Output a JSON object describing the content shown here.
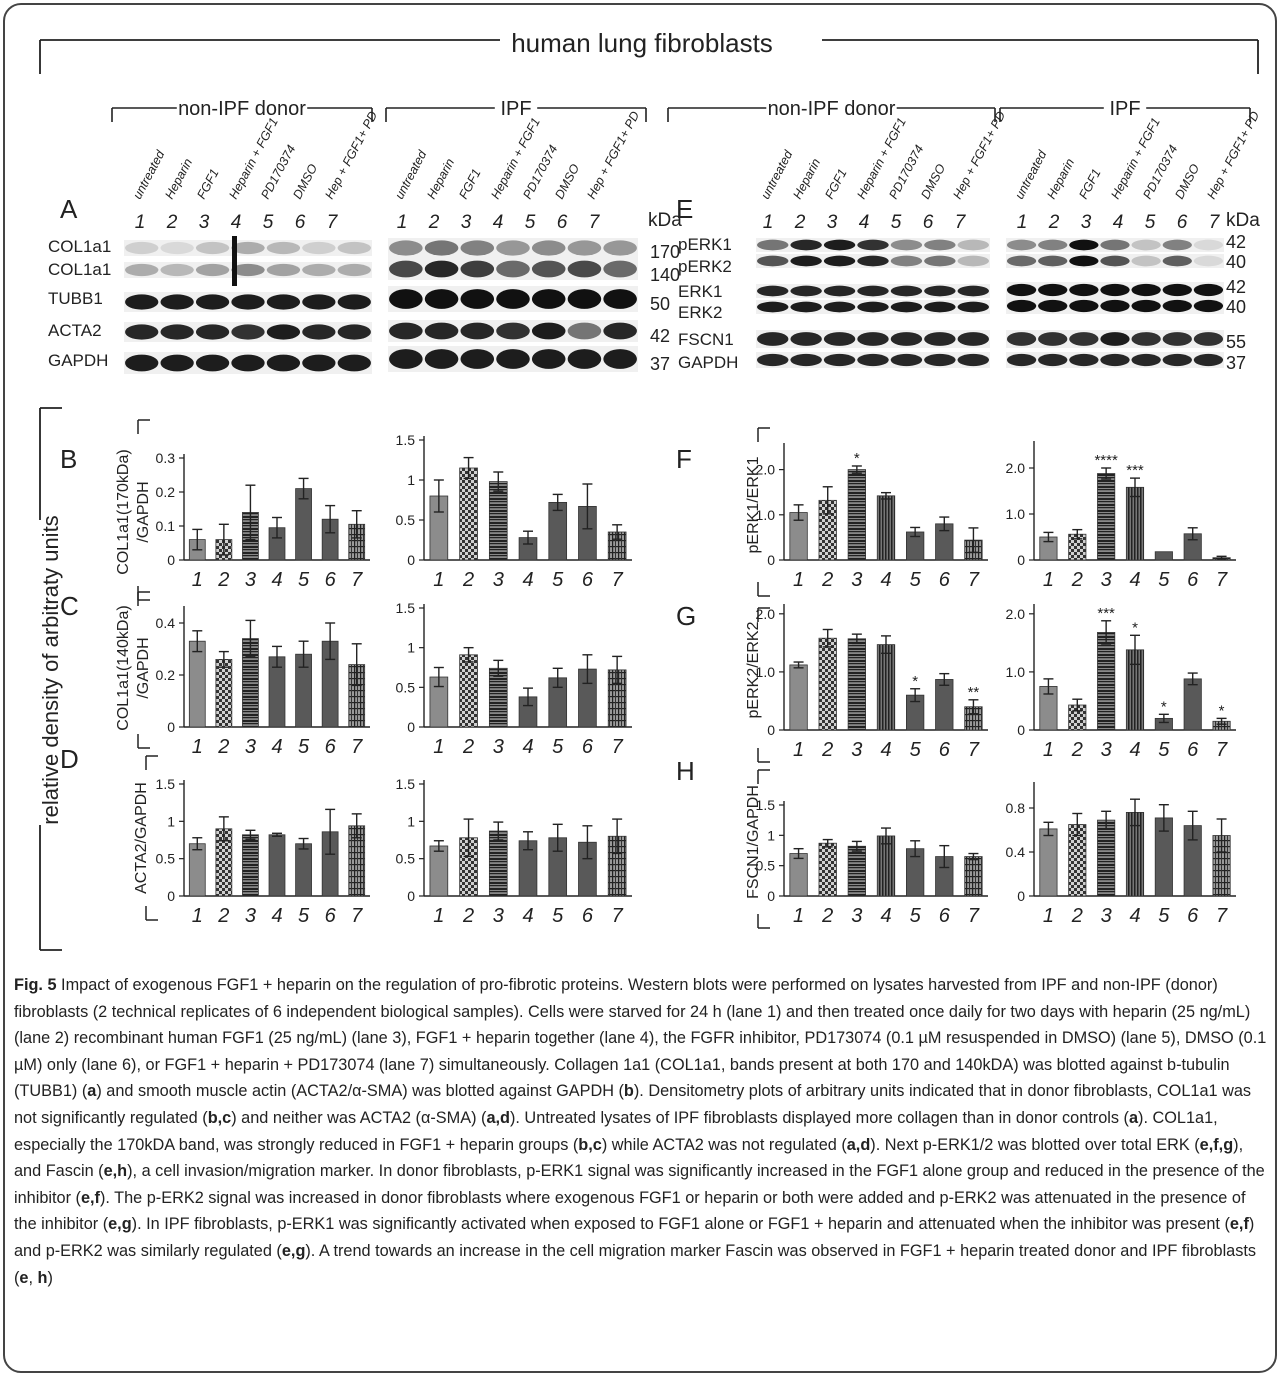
{
  "figure": {
    "title": "human lung fibroblasts",
    "ylabel_global": "relative density of arbitraty units",
    "group_labels": [
      "non-IPF donor",
      "IPF",
      "non-IPF donor",
      "IPF"
    ],
    "lane_names": [
      "untreated",
      "Heparin",
      "FGF1",
      "Heparin + FGF1",
      "PD170374",
      "DMSO",
      "Hep + FGF1+ PD"
    ],
    "lane_numbers": [
      "1",
      "2",
      "3",
      "4",
      "5",
      "6",
      "7"
    ],
    "kda_label": "kDa",
    "blot_left": {
      "panel_letter": "A",
      "rows": [
        "COL1a1",
        "COL1a1",
        "TUBB1",
        "ACTA2",
        "GAPDH"
      ],
      "kda": [
        "170",
        "140",
        "50",
        "42",
        "37"
      ]
    },
    "blot_right": {
      "panel_letter": "E",
      "rows": [
        "pERK1",
        "pERK2",
        "ERK1",
        "ERK2",
        "FSCN1",
        "GAPDH"
      ],
      "kda": [
        "42",
        "40",
        "42",
        "40",
        "55",
        "37"
      ]
    }
  },
  "chart_data": [
    {
      "id": "B-donor",
      "panel": "B",
      "type": "bar",
      "ylabel": "COL1a1(170kDa)\n/GAPDH",
      "categories": [
        "1",
        "2",
        "3",
        "4",
        "5",
        "6",
        "7"
      ],
      "values": [
        0.06,
        0.06,
        0.14,
        0.095,
        0.21,
        0.12,
        0.105
      ],
      "errors": [
        0.03,
        0.045,
        0.08,
        0.03,
        0.03,
        0.04,
        0.04
      ],
      "ylim": [
        0,
        0.3
      ],
      "ticks": [
        "0",
        "0.1",
        "0.2",
        "0.3"
      ],
      "tick_values": [
        0,
        0.1,
        0.2,
        0.3
      ],
      "stars": [
        "",
        "",
        "",
        "",
        "",
        "",
        ""
      ]
    },
    {
      "id": "B-ipf",
      "panel": "B",
      "type": "bar",
      "ylabel": "",
      "categories": [
        "1",
        "2",
        "3",
        "4",
        "5",
        "6",
        "7"
      ],
      "values": [
        0.8,
        1.15,
        0.98,
        0.28,
        0.72,
        0.67,
        0.35
      ],
      "errors": [
        0.2,
        0.13,
        0.12,
        0.08,
        0.1,
        0.28,
        0.09
      ],
      "ylim": [
        0,
        1.5
      ],
      "ticks": [
        "0",
        "0.5",
        "1",
        "1.5"
      ],
      "tick_values": [
        0,
        0.5,
        1,
        1.5
      ],
      "stars": [
        "",
        "",
        "",
        "",
        "",
        "",
        ""
      ]
    },
    {
      "id": "C-donor",
      "panel": "C",
      "type": "bar",
      "ylabel": "COL1a1(140kDa)\n/GAPDH",
      "categories": [
        "1",
        "2",
        "3",
        "4",
        "5",
        "6",
        "7"
      ],
      "values": [
        0.33,
        0.26,
        0.34,
        0.27,
        0.28,
        0.33,
        0.24
      ],
      "errors": [
        0.04,
        0.03,
        0.07,
        0.04,
        0.05,
        0.07,
        0.08
      ],
      "ylim": [
        0,
        0.45
      ],
      "ticks": [
        "0",
        "0.2",
        "0.4"
      ],
      "tick_values": [
        0,
        0.2,
        0.4
      ],
      "stars": [
        "",
        "",
        "",
        "",
        "",
        "",
        ""
      ]
    },
    {
      "id": "C-ipf",
      "panel": "C",
      "type": "bar",
      "ylabel": "",
      "categories": [
        "1",
        "2",
        "3",
        "4",
        "5",
        "6",
        "7"
      ],
      "values": [
        0.63,
        0.91,
        0.74,
        0.38,
        0.62,
        0.73,
        0.72
      ],
      "errors": [
        0.12,
        0.09,
        0.1,
        0.11,
        0.12,
        0.18,
        0.17
      ],
      "ylim": [
        0,
        1.5
      ],
      "ticks": [
        "0",
        "0.5",
        "1",
        "1.5"
      ],
      "tick_values": [
        0,
        0.5,
        1,
        1.5
      ],
      "stars": [
        "",
        "",
        "",
        "",
        "",
        "",
        ""
      ]
    },
    {
      "id": "D-donor",
      "panel": "D",
      "type": "bar",
      "ylabel": "ACTA2/GAPDH",
      "categories": [
        "1",
        "2",
        "3",
        "4",
        "5",
        "6",
        "7"
      ],
      "values": [
        0.7,
        0.9,
        0.82,
        0.82,
        0.7,
        0.86,
        0.94
      ],
      "errors": [
        0.08,
        0.16,
        0.06,
        0.02,
        0.07,
        0.3,
        0.16
      ],
      "ylim": [
        0,
        1.5
      ],
      "ticks": [
        "0",
        "0.5",
        "1",
        "1.5"
      ],
      "tick_values": [
        0,
        0.5,
        1,
        1.5
      ],
      "stars": [
        "",
        "",
        "",
        "",
        "",
        "",
        ""
      ]
    },
    {
      "id": "D-ipf",
      "panel": "D",
      "type": "bar",
      "ylabel": "",
      "categories": [
        "1",
        "2",
        "3",
        "4",
        "5",
        "6",
        "7"
      ],
      "values": [
        0.67,
        0.78,
        0.87,
        0.74,
        0.78,
        0.72,
        0.8
      ],
      "errors": [
        0.07,
        0.25,
        0.12,
        0.12,
        0.18,
        0.22,
        0.23
      ],
      "ylim": [
        0,
        1.5
      ],
      "ticks": [
        "0",
        "0.5",
        "1",
        "1.5"
      ],
      "tick_values": [
        0,
        0.5,
        1,
        1.5
      ],
      "stars": [
        "",
        "",
        "",
        "",
        "",
        "",
        ""
      ]
    },
    {
      "id": "F-donor",
      "panel": "F",
      "type": "bar",
      "ylabel": "pERK1/ERK1",
      "categories": [
        "1",
        "2",
        "3",
        "4",
        "5",
        "6",
        "7"
      ],
      "values": [
        1.05,
        1.32,
        2.0,
        1.42,
        0.62,
        0.8,
        0.44
      ],
      "errors": [
        0.17,
        0.3,
        0.08,
        0.07,
        0.1,
        0.15,
        0.27
      ],
      "ylim": [
        0,
        2.5
      ],
      "ticks": [
        "0",
        "1.0",
        "2.0"
      ],
      "tick_values": [
        0,
        1,
        2
      ],
      "stars": [
        "",
        "",
        "*",
        "",
        "",
        "",
        ""
      ]
    },
    {
      "id": "F-ipf",
      "panel": "F",
      "type": "bar",
      "ylabel": "",
      "categories": [
        "1",
        "2",
        "3",
        "4",
        "5",
        "6",
        "7"
      ],
      "values": [
        0.5,
        0.56,
        1.88,
        1.58,
        0.18,
        0.57,
        0.05
      ],
      "errors": [
        0.1,
        0.1,
        0.12,
        0.2,
        0.0,
        0.13,
        0.03
      ],
      "ylim": [
        0,
        2.5
      ],
      "ticks": [
        "0",
        "1.0",
        "2.0"
      ],
      "tick_values": [
        0,
        1,
        2
      ],
      "stars": [
        "",
        "",
        "****",
        "***",
        "",
        "",
        ""
      ]
    },
    {
      "id": "G-donor",
      "panel": "G",
      "type": "bar",
      "ylabel": "pERK2/ERK2",
      "categories": [
        "1",
        "2",
        "3",
        "4",
        "5",
        "6",
        "7"
      ],
      "values": [
        1.12,
        1.58,
        1.57,
        1.47,
        0.6,
        0.87,
        0.4
      ],
      "errors": [
        0.05,
        0.15,
        0.08,
        0.15,
        0.11,
        0.1,
        0.12
      ],
      "ylim": [
        0,
        2.1
      ],
      "ticks": [
        "0",
        "1.0",
        "2.0"
      ],
      "tick_values": [
        0,
        1,
        2
      ],
      "stars": [
        "",
        "",
        "",
        "",
        "*",
        "",
        "**"
      ]
    },
    {
      "id": "G-ipf",
      "panel": "G",
      "type": "bar",
      "ylabel": "",
      "categories": [
        "1",
        "2",
        "3",
        "4",
        "5",
        "6",
        "7"
      ],
      "values": [
        0.75,
        0.43,
        1.68,
        1.38,
        0.2,
        0.88,
        0.15
      ],
      "errors": [
        0.13,
        0.1,
        0.2,
        0.25,
        0.07,
        0.1,
        0.05
      ],
      "ylim": [
        0,
        2.1
      ],
      "ticks": [
        "0",
        "1.0",
        "2.0"
      ],
      "tick_values": [
        0,
        1,
        2
      ],
      "stars": [
        "",
        "",
        "***",
        "*",
        "*",
        "",
        "*"
      ]
    },
    {
      "id": "H-donor",
      "panel": "H",
      "type": "bar",
      "ylabel": "FSCN1/GAPDH",
      "categories": [
        "1",
        "2",
        "3",
        "4",
        "5",
        "6",
        "7"
      ],
      "values": [
        0.7,
        0.87,
        0.82,
        0.99,
        0.78,
        0.65,
        0.65
      ],
      "errors": [
        0.08,
        0.06,
        0.08,
        0.13,
        0.13,
        0.18,
        0.05
      ],
      "ylim": [
        0,
        1.5
      ],
      "ticks": [
        "0",
        "0.5",
        "1",
        "1.5"
      ],
      "tick_values": [
        0,
        0.5,
        1,
        1.5
      ],
      "stars": [
        "",
        "",
        "",
        "",
        "",
        "",
        ""
      ]
    },
    {
      "id": "H-ipf",
      "panel": "H",
      "type": "bar",
      "ylabel": "",
      "categories": [
        "1",
        "2",
        "3",
        "4",
        "5",
        "6",
        "7"
      ],
      "values": [
        0.61,
        0.65,
        0.69,
        0.76,
        0.71,
        0.64,
        0.55
      ],
      "errors": [
        0.06,
        0.1,
        0.08,
        0.12,
        0.12,
        0.13,
        0.15
      ],
      "ylim": [
        0,
        1.0
      ],
      "ticks": [
        "0",
        "0.4",
        "0.8"
      ],
      "tick_values": [
        0,
        0.4,
        0.8
      ],
      "stars": [
        "",
        "",
        "",
        "",
        "",
        "",
        ""
      ]
    }
  ],
  "caption": {
    "fig_label": "Fig. 5",
    "segments": [
      {
        "t": " Impact of exogenous FGF1 + heparin on the regulation of pro-fibrotic proteins. Western blots were performed on lysates harvested from IPF and non-IPF (donor) fibroblasts (2 technical replicates of 6 independent biological samples). Cells were starved for 24 h (lane 1) and then treated once daily for two days with heparin (25 ng/mL) (lane 2) recombinant human FGF1 (25 ng/mL) (lane 3), FGF1 + heparin together (lane 4), the FGFR inhibitor, PD173074 (0.1 µM resuspended in DMSO) (lane 5), DMSO (0.1 µM) only (lane 6), or FGF1 + heparin + PD173074 (lane 7) simultaneously. Collagen 1a1 (COL1a1, bands present at both 170 and 140kDA) was blotted against b-tubulin (TUBB1) (",
        "b": false
      },
      {
        "t": "a",
        "b": true
      },
      {
        "t": ") and smooth muscle actin (ACTA2/α-SMA) was blotted against GAPDH (",
        "b": false
      },
      {
        "t": "b",
        "b": true
      },
      {
        "t": "). Densitometry plots of arbitrary units indicated that in donor fibroblasts, COL1a1 was not significantly regulated (",
        "b": false
      },
      {
        "t": "b,c",
        "b": true
      },
      {
        "t": ") and neither was ACTA2 (α-SMA) (",
        "b": false
      },
      {
        "t": "a,d",
        "b": true
      },
      {
        "t": "). Untreated lysates of IPF fibroblasts displayed more collagen than in donor controls (",
        "b": false
      },
      {
        "t": "a",
        "b": true
      },
      {
        "t": "). COL1a1, especially the 170kDA band, was strongly reduced in FGF1 + heparin groups (",
        "b": false
      },
      {
        "t": "b,c",
        "b": true
      },
      {
        "t": ") while ACTA2 was not regulated (",
        "b": false
      },
      {
        "t": "a,d",
        "b": true
      },
      {
        "t": "). Next p-ERK1/2 was blotted over total ERK (",
        "b": false
      },
      {
        "t": "e,f,g",
        "b": true
      },
      {
        "t": "), and Fascin (",
        "b": false
      },
      {
        "t": "e,h",
        "b": true
      },
      {
        "t": "), a cell invasion/migration marker. In donor fibroblasts, p-ERK1 signal was significantly increased in the FGF1 alone group and reduced in the presence of the inhibitor (",
        "b": false
      },
      {
        "t": "e,f",
        "b": true
      },
      {
        "t": "). The p-ERK2 signal was increased in donor fibroblasts where exogenous FGF1 or heparin or both were added and p-ERK2 was attenuated in the presence of the inhibitor (",
        "b": false
      },
      {
        "t": "e,g",
        "b": true
      },
      {
        "t": "). In IPF fibroblasts, p-ERK1 was significantly activated when exposed to FGF1 alone or FGF1 + heparin and attenuated when the inhibitor was present (",
        "b": false
      },
      {
        "t": "e,f",
        "b": true
      },
      {
        "t": ") and p-ERK2 was similarly regulated (",
        "b": false
      },
      {
        "t": "e,g",
        "b": true
      },
      {
        "t": "). A trend towards an increase in the cell migration marker Fascin was observed in FGF1 + heparin treated donor and IPF fibroblasts (",
        "b": false
      },
      {
        "t": "e",
        "b": true
      },
      {
        "t": ", ",
        "b": false
      },
      {
        "t": "h",
        "b": true
      },
      {
        "t": ")",
        "b": false
      }
    ]
  },
  "colors": {
    "bar1": "#8c8c8c",
    "bar_dark": "#595959",
    "ink": "#222222",
    "frame": "#444444"
  }
}
